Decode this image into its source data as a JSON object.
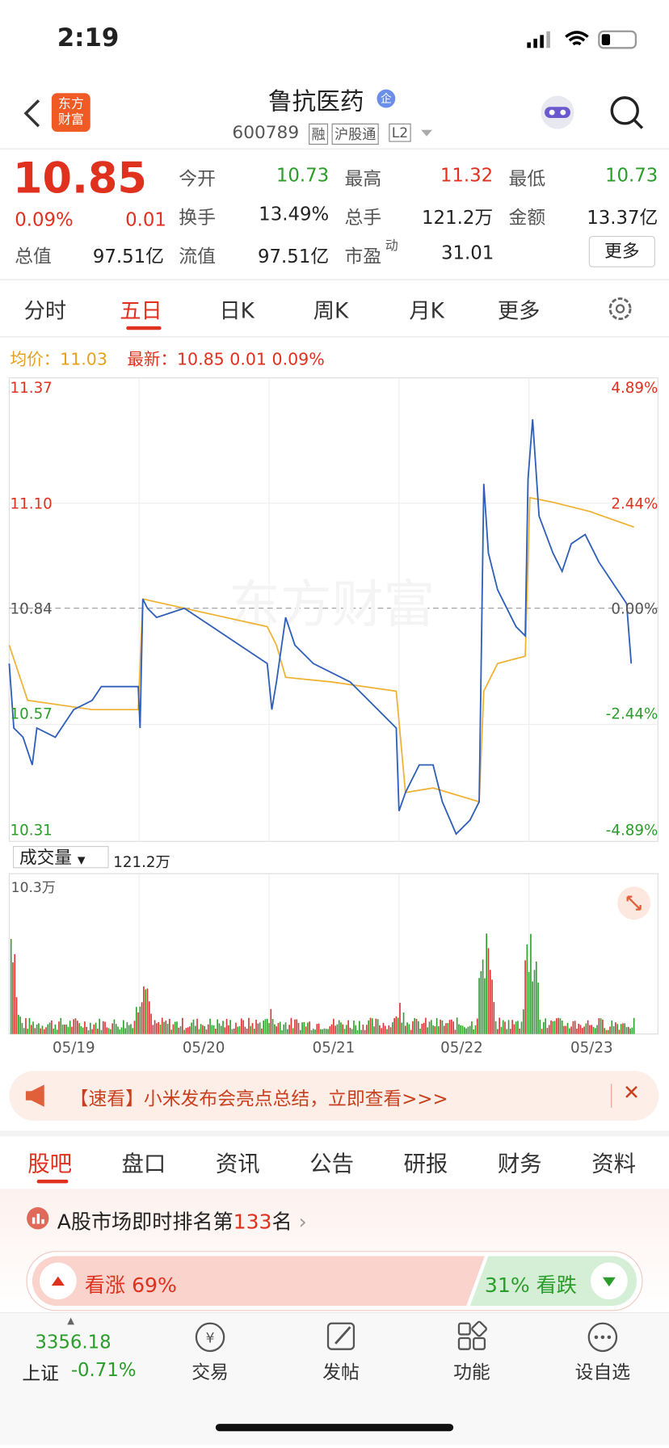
{
  "status": {
    "time": "2:19"
  },
  "header": {
    "logo": [
      "东方",
      "财富"
    ],
    "name": "鲁抗医药",
    "badge": "企",
    "code": "600789",
    "tags": [
      "融",
      "沪股通",
      "L2"
    ]
  },
  "quote": {
    "price": "10.85",
    "change_pct": "0.09%",
    "change": "0.01",
    "more": "更多",
    "fields": [
      {
        "label": "今开",
        "value": "10.73"
      },
      {
        "label": "最高",
        "value": "11.32"
      },
      {
        "label": "最低",
        "value": "10.73"
      },
      {
        "label": "换手",
        "value": "13.49%"
      },
      {
        "label": "总手",
        "value": "121.2万"
      },
      {
        "label": "金额",
        "value": "13.37亿"
      },
      {
        "label": "总值",
        "value": "97.51亿"
      },
      {
        "label": "流值",
        "value": "97.51亿"
      },
      {
        "label": "市盈",
        "sup": "动",
        "value": "31.01"
      }
    ]
  },
  "tabs": [
    "分时",
    "五日",
    "日K",
    "周K",
    "月K",
    "更多"
  ],
  "chart": {
    "avg_label": "均价：",
    "avg": "11.03",
    "latest_label": "最新：",
    "latest": "10.85",
    "latest_change": "0.01",
    "latest_pct": "0.09%",
    "left_axis": [
      "11.37",
      "11.10",
      "10.84",
      "10.57",
      "10.31"
    ],
    "right_axis": [
      "4.89%",
      "2.44%",
      "0.00%",
      "-2.44%",
      "-4.89%"
    ],
    "volume_label": "成交量",
    "volume_total": "121.2万",
    "volume_max": "10.3万",
    "dates": [
      "05/19",
      "05/20",
      "05/21",
      "05/22",
      "05/23"
    ]
  },
  "banner": "【速看】小米发布会亮点总结，立即查看>>>",
  "subtabs": [
    "股吧",
    "盘口",
    "资讯",
    "公告",
    "研报",
    "财务",
    "资料"
  ],
  "rank": {
    "prefix": "A股市场即时排名第",
    "number": "133",
    "suffix": "名"
  },
  "sentiment": {
    "up": "看涨 69%",
    "down": "31% 看跌"
  },
  "bottom": {
    "index_value": "3356.18",
    "index_name": "上证",
    "index_change": "-0.71%",
    "nav": [
      "交易",
      "发帖",
      "功能",
      "设自选"
    ]
  }
}
